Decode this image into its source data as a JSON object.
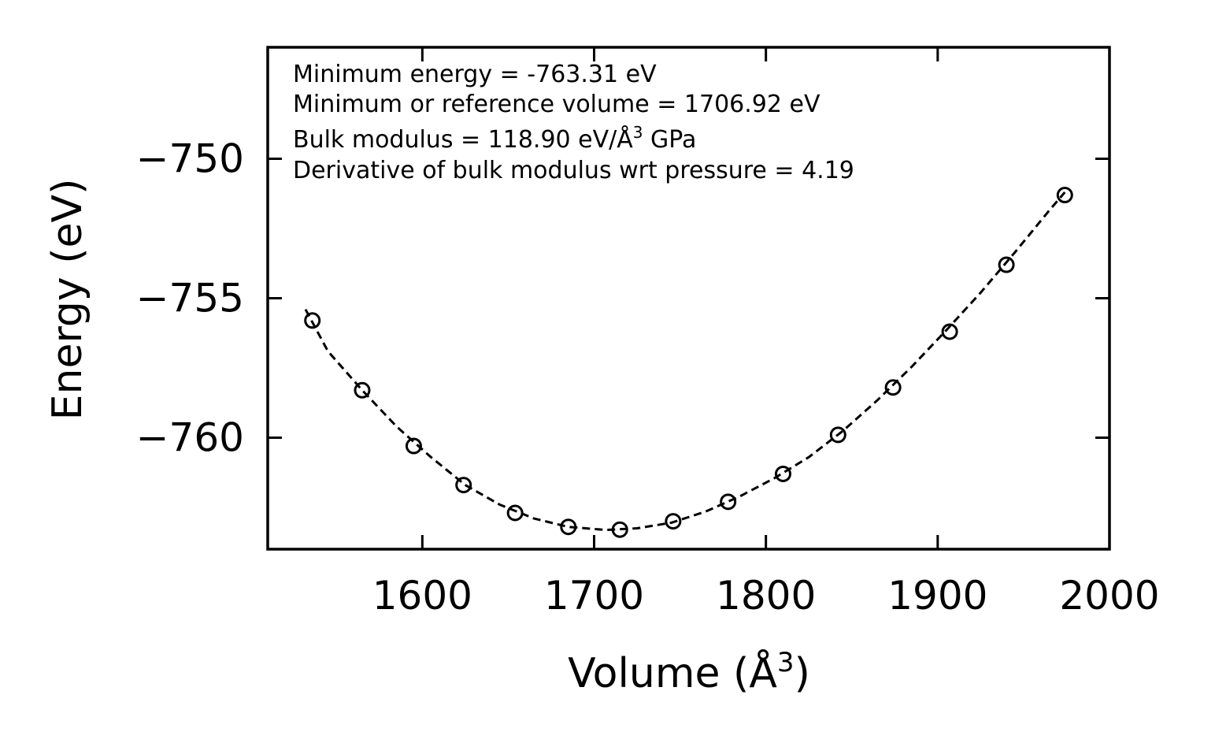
{
  "chart_data": {
    "type": "scatter",
    "title": "",
    "xlabel_main": "Volume (Å",
    "xlabel_sup": "3",
    "xlabel_tail": ")",
    "ylabel": "Energy (eV)",
    "xlim": [
      1510,
      2000
    ],
    "ylim": [
      -764,
      -746
    ],
    "xticks": [
      1600,
      1700,
      1800,
      1900,
      2000
    ],
    "xtick_labels": [
      "1600",
      "1700",
      "1800",
      "1900",
      "2000"
    ],
    "yticks": [
      -750,
      -755,
      -760
    ],
    "ytick_labels": [
      "−750",
      "−755",
      "−760"
    ],
    "grid": false,
    "series": [
      {
        "name": "data",
        "style": "open-circle",
        "x": [
          1536,
          1565,
          1595,
          1624,
          1654,
          1685,
          1715,
          1746,
          1778,
          1810,
          1842,
          1874,
          1907,
          1940,
          1974
        ],
        "y": [
          -755.8,
          -758.3,
          -760.3,
          -761.7,
          -762.7,
          -763.2,
          -763.3,
          -763.0,
          -762.3,
          -761.3,
          -759.9,
          -758.2,
          -756.2,
          -753.8,
          -751.3
        ]
      },
      {
        "name": "fit",
        "style": "dashed-line",
        "x": [
          1532,
          1545,
          1565,
          1585,
          1605,
          1625,
          1645,
          1665,
          1685,
          1706.92,
          1725,
          1745,
          1765,
          1785,
          1805,
          1825,
          1845,
          1865,
          1885,
          1905,
          1925,
          1945,
          1965,
          1974
        ],
        "y": [
          -755.4,
          -756.9,
          -758.3,
          -759.6,
          -760.7,
          -761.7,
          -762.4,
          -762.9,
          -763.2,
          -763.31,
          -763.25,
          -763.05,
          -762.65,
          -762.1,
          -761.45,
          -760.7,
          -759.75,
          -758.65,
          -757.45,
          -756.15,
          -754.8,
          -753.35,
          -751.85,
          -751.2
        ]
      }
    ],
    "annotations": [
      {
        "main": "Minimum energy = -763.31 eV"
      },
      {
        "main": "Minimum or reference volume = 1706.92 eV"
      },
      {
        "main": "Bulk modulus = 118.90 eV/Å",
        "sup": "3",
        "tail": " GPa"
      },
      {
        "main": "Derivative of bulk modulus wrt pressure = 4.19"
      }
    ]
  }
}
